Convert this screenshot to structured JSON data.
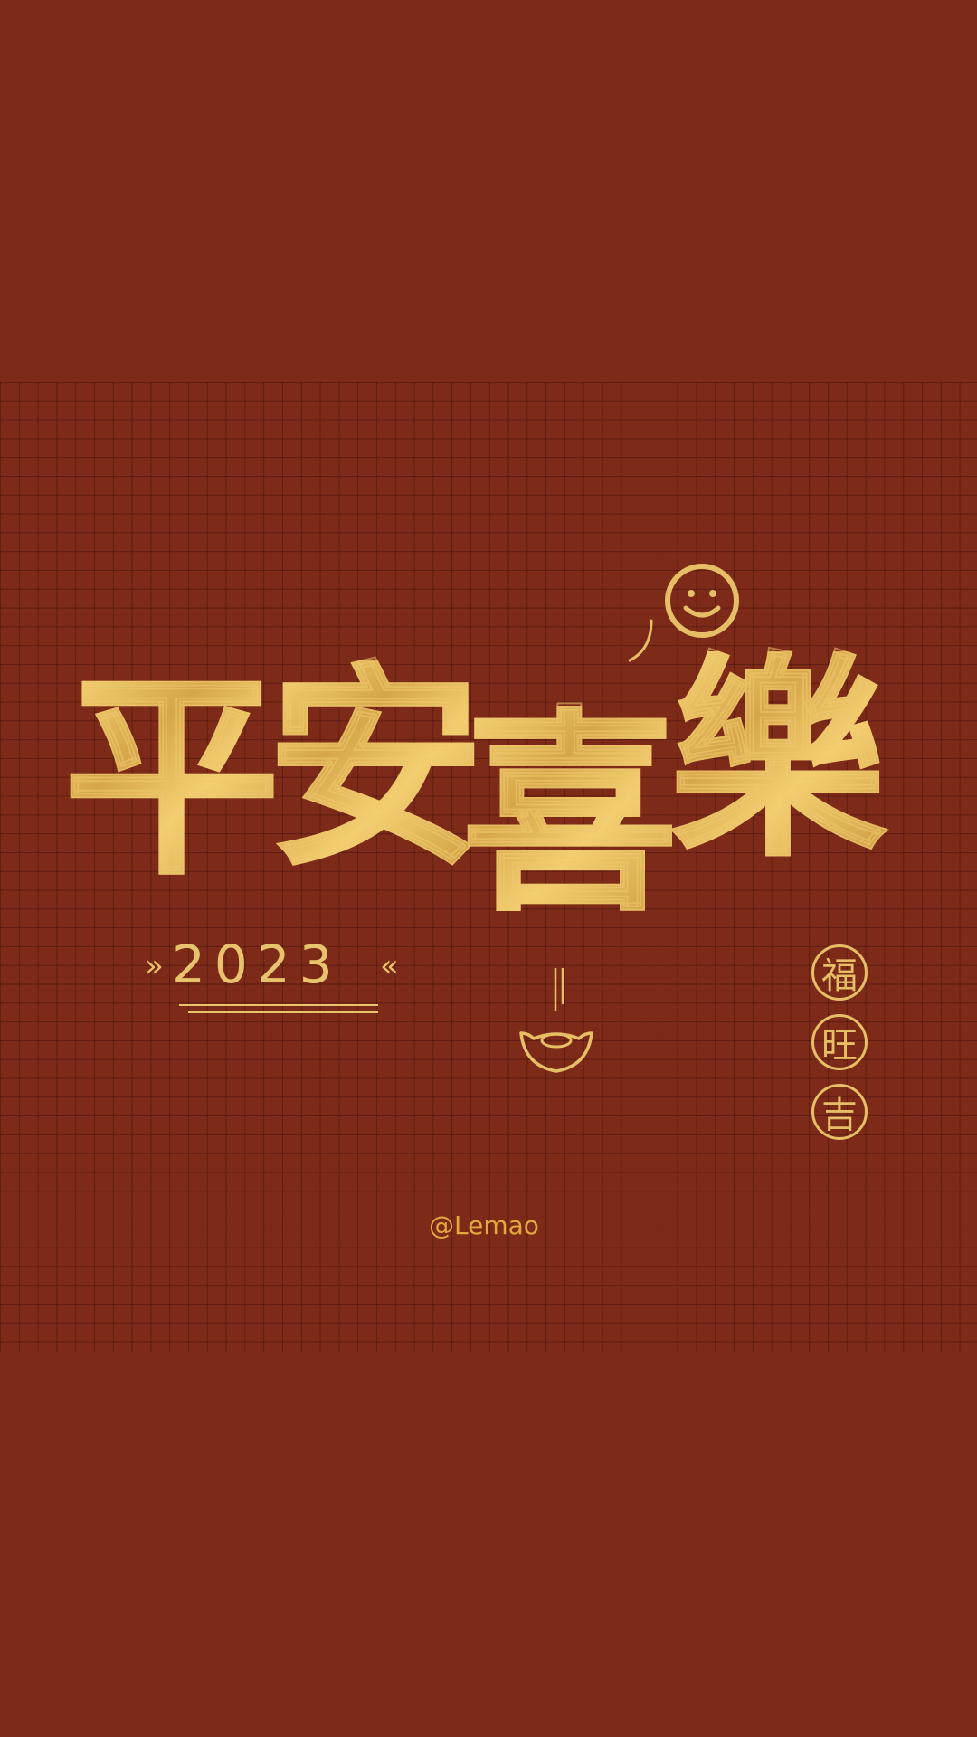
{
  "title": {
    "chars": [
      "平",
      "安",
      "喜",
      "樂"
    ]
  },
  "year": {
    "text": "2023",
    "left_mark": "»",
    "right_mark": "«"
  },
  "stamps": [
    "福",
    "旺",
    "吉"
  ],
  "watermark": "@Lemao",
  "colors": {
    "background": "#7e2a18",
    "gold": "#e5be66"
  },
  "icons": [
    "smiley-icon",
    "gold-ingot-icon"
  ]
}
